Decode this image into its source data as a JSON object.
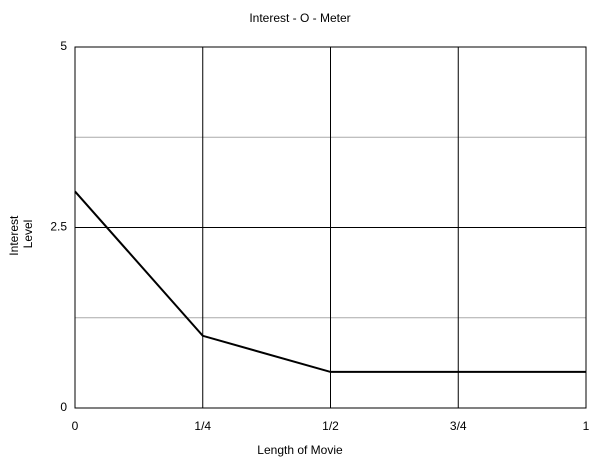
{
  "chart_data": {
    "type": "line",
    "title": "Interest - O - Meter",
    "xlabel": "Length of Movie",
    "ylabel": [
      "Interest",
      "Level"
    ],
    "x": [
      0,
      0.25,
      0.5,
      0.75,
      1
    ],
    "series": [
      {
        "color": "#000000",
        "values": [
          3,
          1,
          0.5,
          0.5,
          0.5
        ]
      }
    ],
    "xlim": [
      0,
      1
    ],
    "ylim": [
      0,
      5
    ],
    "xticks": [
      0,
      {
        "value": 0.25,
        "label": "1/4"
      },
      {
        "value": 0.5,
        "label": "1/2"
      },
      {
        "value": 0.75,
        "label": "3/4"
      },
      1
    ],
    "yticks": [
      0,
      2.5,
      5
    ],
    "minor_yticks": [
      1.25,
      3.75
    ],
    "grid": true
  }
}
